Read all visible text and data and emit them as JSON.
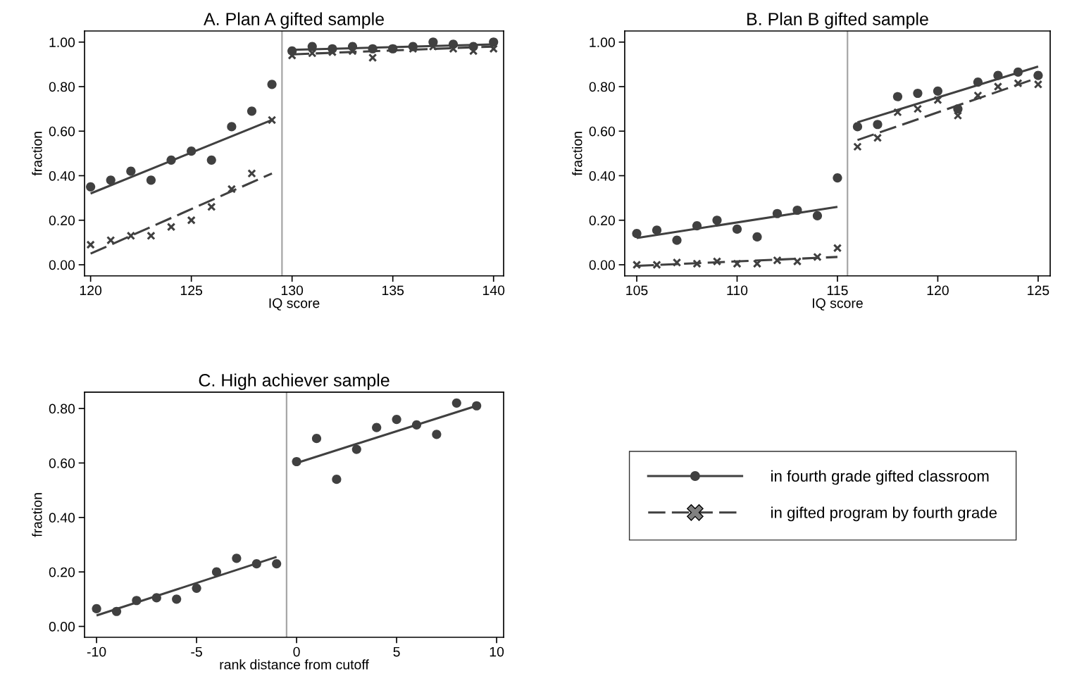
{
  "chart_data": [
    {
      "type": "scatter",
      "title": "A. Plan A gifted sample",
      "xlabel": "IQ score",
      "ylabel": "fraction",
      "xlim": [
        119.7,
        140.5
      ],
      "ylim": [
        -0.05,
        1.05
      ],
      "xticks": [
        120,
        125,
        130,
        135,
        140
      ],
      "yticks": [
        {
          "value": 0,
          "label": "0.00"
        },
        {
          "value": 0.2,
          "label": "0.20"
        },
        {
          "value": 0.4,
          "label": "0.40"
        },
        {
          "value": 0.6,
          "label": "0.60"
        },
        {
          "value": 0.8,
          "label": "0.80"
        },
        {
          "value": 1,
          "label": "1.00"
        }
      ],
      "grid": false,
      "legend": "bottom right",
      "ref_lines": [
        {
          "axis": "x",
          "value": 129.5,
          "color": "#a6a6a6"
        }
      ],
      "series": [
        {
          "type": "scatter",
          "name": "in fourth grade gifted classroom",
          "marker": "circle",
          "line_style": "solid",
          "color": "#404040",
          "x": [
            120,
            121,
            122,
            123,
            124,
            125,
            126,
            127,
            128,
            129,
            130,
            131,
            132,
            133,
            134,
            135,
            136,
            137,
            138,
            139,
            140
          ],
          "values": [
            0.35,
            0.38,
            0.42,
            0.38,
            0.47,
            0.51,
            0.47,
            0.62,
            0.69,
            0.81,
            0.96,
            0.98,
            0.97,
            0.98,
            0.97,
            0.97,
            0.98,
            1.0,
            0.99,
            0.98,
            1.0
          ]
        },
        {
          "type": "scatter",
          "name": "in gifted program by fourth grade",
          "marker": "cross",
          "line_style": "dashed",
          "color": "#404040",
          "x": [
            120,
            121,
            122,
            123,
            124,
            125,
            126,
            127,
            128,
            129,
            130,
            131,
            132,
            133,
            134,
            135,
            136,
            137,
            138,
            139,
            140
          ],
          "values": [
            0.09,
            0.11,
            0.13,
            0.13,
            0.17,
            0.2,
            0.26,
            0.34,
            0.41,
            0.65,
            0.94,
            0.95,
            0.955,
            0.96,
            0.93,
            0.97,
            0.97,
            0.98,
            0.97,
            0.96,
            0.97
          ]
        },
        {
          "type": "line",
          "line_style": "solid",
          "color": "#404040",
          "x": [
            120,
            129
          ],
          "values": [
            0.32,
            0.65
          ]
        },
        {
          "type": "line",
          "line_style": "solid",
          "color": "#404040",
          "x": [
            130,
            140
          ],
          "values": [
            0.965,
            0.99
          ]
        },
        {
          "type": "line",
          "line_style": "dashed",
          "color": "#404040",
          "x": [
            120,
            129
          ],
          "values": [
            0.05,
            0.41
          ]
        },
        {
          "type": "line",
          "line_style": "dashed",
          "color": "#404040",
          "x": [
            130,
            140
          ],
          "values": [
            0.945,
            0.98
          ]
        }
      ]
    },
    {
      "type": "scatter",
      "title": "B. Plan B gifted sample",
      "xlabel": "IQ score",
      "ylabel": "fraction",
      "xlim": [
        104.4,
        125.6
      ],
      "ylim": [
        -0.05,
        1.05
      ],
      "xticks": [
        105,
        110,
        115,
        120,
        125
      ],
      "yticks": [
        {
          "value": 0,
          "label": "0.00"
        },
        {
          "value": 0.2,
          "label": "0.20"
        },
        {
          "value": 0.4,
          "label": "0.40"
        },
        {
          "value": 0.6,
          "label": "0.60"
        },
        {
          "value": 0.8,
          "label": "0.80"
        },
        {
          "value": 1,
          "label": "1.00"
        }
      ],
      "grid": false,
      "ref_lines": [
        {
          "axis": "x",
          "value": 115.5,
          "color": "#a6a6a6"
        }
      ],
      "series": [
        {
          "type": "scatter",
          "marker": "circle",
          "color": "#404040",
          "x": [
            105,
            106,
            107,
            108,
            109,
            110,
            111,
            112,
            113,
            114,
            115,
            116,
            117,
            118,
            119,
            120,
            121,
            122,
            123,
            124,
            125
          ],
          "values": [
            0.14,
            0.155,
            0.11,
            0.175,
            0.2,
            0.16,
            0.125,
            0.23,
            0.245,
            0.22,
            0.39,
            0.62,
            0.63,
            0.755,
            0.77,
            0.78,
            0.7,
            0.82,
            0.85,
            0.865,
            0.85
          ]
        },
        {
          "type": "scatter",
          "marker": "cross",
          "color": "#404040",
          "x": [
            105,
            106,
            107,
            108,
            109,
            110,
            111,
            112,
            113,
            114,
            115,
            116,
            117,
            118,
            119,
            120,
            121,
            122,
            123,
            124,
            125
          ],
          "values": [
            0.0,
            0.0,
            0.01,
            0.005,
            0.015,
            0.005,
            0.005,
            0.02,
            0.015,
            0.035,
            0.075,
            0.53,
            0.57,
            0.685,
            0.7,
            0.74,
            0.67,
            0.76,
            0.8,
            0.815,
            0.81
          ]
        },
        {
          "type": "line",
          "line_style": "solid",
          "color": "#404040",
          "x": [
            105,
            115
          ],
          "values": [
            0.12,
            0.26
          ]
        },
        {
          "type": "line",
          "line_style": "solid",
          "color": "#404040",
          "x": [
            116,
            125
          ],
          "values": [
            0.64,
            0.89
          ]
        },
        {
          "type": "line",
          "line_style": "dashed",
          "color": "#404040",
          "x": [
            105,
            115
          ],
          "values": [
            -0.005,
            0.035
          ]
        },
        {
          "type": "line",
          "line_style": "dashed",
          "color": "#404040",
          "x": [
            116,
            125
          ],
          "values": [
            0.56,
            0.84
          ]
        }
      ]
    },
    {
      "type": "scatter",
      "title": "C. High achiever sample",
      "xlabel": "rank distance from cutoff",
      "ylabel": "fraction",
      "xlim": [
        -10.6,
        10.35
      ],
      "ylim": [
        -0.04,
        0.86
      ],
      "xticks": [
        -10,
        -5,
        0,
        5,
        10
      ],
      "yticks": [
        {
          "value": 0,
          "label": "0.00"
        },
        {
          "value": 0.2,
          "label": "0.20"
        },
        {
          "value": 0.4,
          "label": "0.40"
        },
        {
          "value": 0.6,
          "label": "0.60"
        },
        {
          "value": 0.8,
          "label": "0.80"
        }
      ],
      "grid": false,
      "ref_lines": [
        {
          "axis": "x",
          "value": -0.5,
          "color": "#a6a6a6"
        }
      ],
      "series": [
        {
          "type": "scatter",
          "marker": "circle",
          "color": "#404040",
          "x": [
            -10,
            -9,
            -8,
            -7,
            -6,
            -5,
            -4,
            -3,
            -2,
            -1,
            0,
            1,
            2,
            3,
            4,
            5,
            6,
            7,
            8,
            9
          ],
          "values": [
            0.065,
            0.055,
            0.095,
            0.105,
            0.1,
            0.14,
            0.2,
            0.25,
            0.23,
            0.23,
            0.605,
            0.69,
            0.54,
            0.65,
            0.73,
            0.76,
            0.74,
            0.705,
            0.82,
            0.81
          ]
        },
        {
          "type": "line",
          "line_style": "solid",
          "color": "#404040",
          "x": [
            -10,
            -1
          ],
          "values": [
            0.04,
            0.255
          ]
        },
        {
          "type": "line",
          "line_style": "solid",
          "color": "#404040",
          "x": [
            0,
            9
          ],
          "values": [
            0.6,
            0.81
          ]
        }
      ]
    }
  ]
}
